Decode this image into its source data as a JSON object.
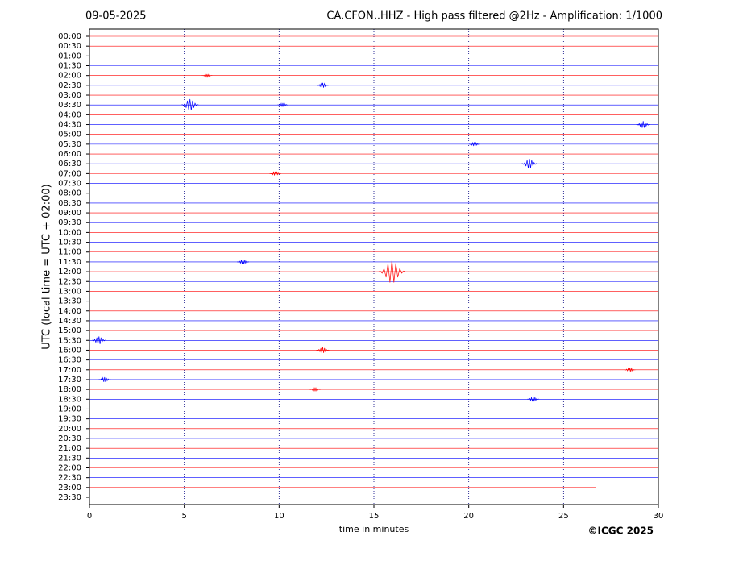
{
  "chart_data": {
    "type": "helicorder",
    "date": "09-05-2025",
    "title": "CA.CFON..HHZ - High pass filtered @2Hz - Amplification: 1/1000",
    "y_label": "UTC (local time = UTC + 02:00)",
    "x_label": "time in minutes",
    "credit": "©ICGC 2025",
    "categories": [
      "00:00",
      "00:30",
      "01:00",
      "01:30",
      "02:00",
      "02:30",
      "03:00",
      "03:30",
      "04:00",
      "04:30",
      "05:00",
      "05:30",
      "06:00",
      "06:30",
      "07:00",
      "07:30",
      "08:00",
      "08:30",
      "09:00",
      "09:30",
      "10:00",
      "10:30",
      "11:00",
      "11:30",
      "12:00",
      "12:30",
      "13:00",
      "13:30",
      "14:00",
      "14:30",
      "15:00",
      "15:30",
      "16:00",
      "16:30",
      "17:00",
      "17:30",
      "18:00",
      "18:30",
      "19:00",
      "19:30",
      "20:00",
      "20:30",
      "21:00",
      "21:30",
      "22:00",
      "22:30",
      "23:00",
      "23:30"
    ],
    "colors": [
      "#ff0000",
      "#ff0000",
      "#ff0000",
      "#0000ff",
      "#ff0000",
      "#0000ff",
      "#ff0000",
      "#0000ff",
      "#ff0000",
      "#0000ff",
      "#ff0000",
      "#0000ff",
      "#ff0000",
      "#0000ff",
      "#ff0000",
      "#0000ff",
      "#ff0000",
      "#0000ff",
      "#ff0000",
      "#0000ff",
      "#ff0000",
      "#0000ff",
      "#ff0000",
      "#0000ff",
      "#ff0000",
      "#0000ff",
      "#ff0000",
      "#0000ff",
      "#ff0000",
      "#0000ff",
      "#ff0000",
      "#0000ff",
      "#ff0000",
      "#0000ff",
      "#ff0000",
      "#0000ff",
      "#ff0000",
      "#0000ff",
      "#ff0000",
      "#0000ff",
      "#ff0000",
      "#0000ff",
      "#ff0000",
      "#0000ff",
      "#ff0000",
      "#0000ff",
      "#ff0000",
      "#0000ff"
    ],
    "ends": [
      30,
      30,
      30,
      30,
      30,
      30,
      30,
      30,
      30,
      30,
      30,
      30,
      30,
      30,
      30,
      30,
      30,
      30,
      30,
      30,
      30,
      30,
      30,
      30,
      30,
      30,
      30,
      30,
      30,
      30,
      30,
      30,
      30,
      30,
      30,
      30,
      30,
      30,
      30,
      30,
      30,
      30,
      30,
      30,
      30,
      30,
      26.7,
      null
    ],
    "events": [
      {
        "row": 7,
        "x": 5.3,
        "amp": 0.6
      },
      {
        "row": 7,
        "x": 10.2,
        "amp": 0.2
      },
      {
        "row": 4,
        "x": 6.2,
        "amp": 0.15
      },
      {
        "row": 5,
        "x": 12.3,
        "amp": 0.25
      },
      {
        "row": 9,
        "x": 29.2,
        "amp": 0.35
      },
      {
        "row": 11,
        "x": 20.3,
        "amp": 0.2
      },
      {
        "row": 13,
        "x": 23.2,
        "amp": 0.5
      },
      {
        "row": 14,
        "x": 9.8,
        "amp": 0.2
      },
      {
        "row": 23,
        "x": 8.1,
        "amp": 0.25
      },
      {
        "row": 24,
        "x": 15.95,
        "amp": 1.2
      },
      {
        "row": 31,
        "x": 0.5,
        "amp": 0.4
      },
      {
        "row": 32,
        "x": 12.3,
        "amp": 0.3
      },
      {
        "row": 34,
        "x": 28.5,
        "amp": 0.2
      },
      {
        "row": 35,
        "x": 0.8,
        "amp": 0.25
      },
      {
        "row": 36,
        "x": 11.9,
        "amp": 0.2
      },
      {
        "row": 37,
        "x": 23.4,
        "amp": 0.25
      }
    ],
    "xlim": [
      0,
      30
    ],
    "xticks": [
      0,
      5,
      10,
      15,
      20,
      25,
      30
    ],
    "grid": true
  }
}
